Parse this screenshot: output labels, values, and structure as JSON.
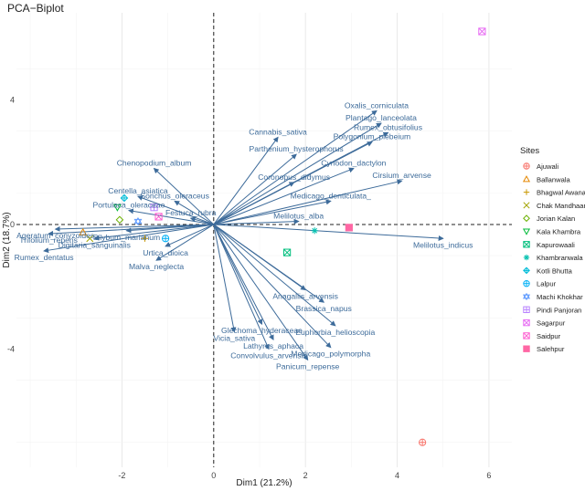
{
  "chart_data": {
    "type": "scatter",
    "title": "PCA−Biplot",
    "xlabel": "Dim1 (21.2%)",
    "ylabel": "Dim2 (18.7%)",
    "xlim": [
      -4.3,
      6.5
    ],
    "ylim": [
      -7.8,
      6.8
    ],
    "x_ticks": [
      {
        "value": -2,
        "label": "-2"
      },
      {
        "value": 0,
        "label": "0"
      },
      {
        "value": 2,
        "label": "2"
      },
      {
        "value": 4,
        "label": "4"
      },
      {
        "value": 6,
        "label": "6"
      }
    ],
    "y_ticks": [
      {
        "value": -4,
        "label": "-4"
      },
      {
        "value": 0,
        "label": "0"
      },
      {
        "value": 4,
        "label": "4"
      }
    ],
    "grid": true,
    "arrow_color": "#3d6b9a",
    "variables": [
      {
        "name": "Oxalis_corniculata",
        "x": 3.55,
        "y": 3.65
      },
      {
        "name": "Plantago_lanceolata",
        "x": 3.65,
        "y": 3.25
      },
      {
        "name": "Rumex_obtusifolius",
        "x": 3.8,
        "y": 2.95
      },
      {
        "name": "Polygonium_plebeium",
        "x": 3.45,
        "y": 2.65
      },
      {
        "name": "Cannabis_sativa",
        "x": 1.4,
        "y": 2.8
      },
      {
        "name": "Parthenium_hysterophorus",
        "x": 1.8,
        "y": 2.25
      },
      {
        "name": "Cynodon_dactylon",
        "x": 3.05,
        "y": 1.8
      },
      {
        "name": "Cirsium_arvense",
        "x": 4.1,
        "y": 1.4
      },
      {
        "name": "Coronopus_didymus",
        "x": 1.75,
        "y": 1.35
      },
      {
        "name": "Medicago_denticulata_",
        "x": 2.55,
        "y": 0.75
      },
      {
        "name": "Melilotus_alba",
        "x": 1.85,
        "y": 0.1
      },
      {
        "name": "Melilotus_indicus",
        "x": 5.0,
        "y": -0.45
      },
      {
        "name": "Chenopodium_album",
        "x": -1.3,
        "y": 1.8
      },
      {
        "name": "Centella_asiatica",
        "x": -1.65,
        "y": 0.9
      },
      {
        "name": "Sonchus_oleraceus",
        "x": -0.85,
        "y": 0.75
      },
      {
        "name": "Portulaca_oleraceae",
        "x": -1.85,
        "y": 0.45
      },
      {
        "name": "Ageratum_conyzoides",
        "x": -3.45,
        "y": -0.15
      },
      {
        "name": "Festuca_rubra",
        "x": -0.5,
        "y": 0.2
      },
      {
        "name": "Trifolium_repens",
        "x": -3.6,
        "y": -0.3
      },
      {
        "name": "Silybum_marianum",
        "x": -1.9,
        "y": -0.2
      },
      {
        "name": "Digitaria_sanguinalis",
        "x": -2.6,
        "y": -0.45
      },
      {
        "name": "Rumex_dentatus",
        "x": -3.7,
        "y": -0.85
      },
      {
        "name": "Urtica_dioica",
        "x": -1.05,
        "y": -0.7
      },
      {
        "name": "Malva_neglecta",
        "x": -1.25,
        "y": -1.15
      },
      {
        "name": "Anagallis_arvensis",
        "x": 2.0,
        "y": -2.1
      },
      {
        "name": "Brassica_napus",
        "x": 2.4,
        "y": -2.5
      },
      {
        "name": "Euphorbia_helioscopia",
        "x": 2.65,
        "y": -3.25
      },
      {
        "name": "Glechoma_hyderaceae",
        "x": 1.05,
        "y": -3.2
      },
      {
        "name": "Lathyrus_aphaca",
        "x": 1.3,
        "y": -3.7
      },
      {
        "name": "Vicia_sativa",
        "x": 0.45,
        "y": -3.45
      },
      {
        "name": "Medicago_polymorpha",
        "x": 2.55,
        "y": -3.95
      },
      {
        "name": "Convolvulus_arvensis",
        "x": 1.2,
        "y": -4.0
      },
      {
        "name": "Panicum_repense",
        "x": 2.05,
        "y": -4.35
      }
    ],
    "observations": [
      {
        "site": "Ajuwali",
        "x": 4.55,
        "y": -7.0
      },
      {
        "site": "Ballanwala",
        "x": -2.85,
        "y": -0.25
      },
      {
        "site": "Bhagwal Awanan",
        "x": -1.5,
        "y": -0.45
      },
      {
        "site": "Chak Mandhaar",
        "x": -2.7,
        "y": -0.45
      },
      {
        "site": "Jorian Kalan",
        "x": -2.05,
        "y": 0.15
      },
      {
        "site": "Kala Khambra",
        "x": -2.1,
        "y": 0.55
      },
      {
        "site": "Kapurowaali",
        "x": 1.6,
        "y": -0.9
      },
      {
        "site": "Khambranwala",
        "x": 2.2,
        "y": -0.2
      },
      {
        "site": "Kotli Bhutta",
        "x": -1.95,
        "y": 0.85
      },
      {
        "site": "Lalpur",
        "x": -1.05,
        "y": -0.45
      },
      {
        "site": "Machi Khokhar",
        "x": -1.65,
        "y": 0.1
      },
      {
        "site": "Pindi Panjoran",
        "x": -1.3,
        "y": 0.55
      },
      {
        "site": "Sagarpur",
        "x": 5.85,
        "y": 6.2
      },
      {
        "site": "Saidpur",
        "x": -1.2,
        "y": 0.25
      },
      {
        "site": "Salehpur",
        "x": 2.95,
        "y": -0.1
      }
    ],
    "legend": {
      "title": "Sites",
      "placement": "right",
      "entries": [
        {
          "label": "Ajuwali",
          "color": "#f8766d",
          "shape": "circle-plus"
        },
        {
          "label": "Ballanwala",
          "color": "#e58700",
          "shape": "triangle"
        },
        {
          "label": "Bhagwal Awanan",
          "color": "#c99800",
          "shape": "plus"
        },
        {
          "label": "Chak Mandhaar",
          "color": "#a3a500",
          "shape": "cross"
        },
        {
          "label": "Jorian Kalan",
          "color": "#6bb100",
          "shape": "diamond"
        },
        {
          "label": "Kala Khambra",
          "color": "#00ba38",
          "shape": "triangle-down"
        },
        {
          "label": "Kapurowaali",
          "color": "#00bf7d",
          "shape": "square-cross"
        },
        {
          "label": "Khambranwala",
          "color": "#00c0af",
          "shape": "star"
        },
        {
          "label": "Kotli Bhutta",
          "color": "#00bcd8",
          "shape": "diamond-plus"
        },
        {
          "label": "Lalpur",
          "color": "#00b0f6",
          "shape": "circle-plus"
        },
        {
          "label": "Machi Khokhar",
          "color": "#619cff",
          "shape": "star-of-david"
        },
        {
          "label": "Pindi Panjoran",
          "color": "#b983ff",
          "shape": "square-plus"
        },
        {
          "label": "Sagarpur",
          "color": "#e76bf3",
          "shape": "square-x"
        },
        {
          "label": "Saidpur",
          "color": "#fd61d1",
          "shape": "square-x"
        },
        {
          "label": "Salehpur",
          "color": "#ff67a4",
          "shape": "square"
        }
      ]
    }
  }
}
